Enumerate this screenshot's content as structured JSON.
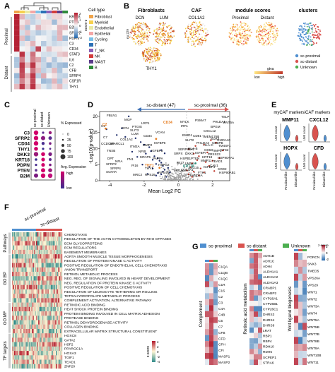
{
  "panels": {
    "A": {
      "letter": "A",
      "row_groups": [
        "Proximal",
        "Distant"
      ],
      "genes": [
        "KRT18",
        "PTEN",
        "B2M",
        "SFRP2",
        "PDPN",
        "C3",
        "CD34",
        "STAT3",
        "IL6",
        "C2",
        "CFB",
        "SFRP4",
        "CSF1R",
        "THY1"
      ],
      "colorbar_label": "z-score",
      "colorbar_ticks": [
        "2",
        "1",
        "0",
        "-1",
        "-2"
      ],
      "legend_title": "Cell type",
      "legend_items": [
        {
          "label": "Fibroblast",
          "color": "#f0a44a"
        },
        {
          "label": "Myeloid",
          "color": "#f6d04d"
        },
        {
          "label": "Endothelial",
          "color": "#e9e9a3"
        },
        {
          "label": "Epithelial",
          "color": "#f4a6a6"
        },
        {
          "label": "Cycling",
          "color": "#7bc0e8"
        },
        {
          "label": "T",
          "color": "#2a6fb5"
        },
        {
          "label": "T_NK",
          "color": "#8a5fb8"
        },
        {
          "label": "NK",
          "color": "#d23a3a"
        },
        {
          "label": "MAST",
          "color": "#5a3a8a"
        },
        {
          "label": "B",
          "color": "#2f8a3a"
        }
      ]
    },
    "B": {
      "letter": "B",
      "fibroblasts_title": "Fibroblasts",
      "caf_title": "CAF",
      "module_title": "module scores",
      "clusters_title": "clusters",
      "genes_top": [
        "DCN",
        "LUM",
        "COL1A2"
      ],
      "module_labels": [
        "Proximal",
        "Distant"
      ],
      "gene_bottom": "THY1",
      "axis_label": "nu 229",
      "gtex_label": "gtva",
      "gtex_low": "low",
      "gtex_high": "high",
      "cluster_legend": [
        {
          "label": "sc-proximal",
          "color": "#4f8fd0"
        },
        {
          "label": "sc-distant",
          "color": "#d9534f"
        },
        {
          "label": "Unknown",
          "color": "#4caf50"
        }
      ]
    },
    "C": {
      "letter": "C",
      "columns": [
        "sc-proximal",
        "sc-distant",
        "Unknown"
      ],
      "genes": [
        "C3",
        "SFRP2",
        "CD34",
        "THY1",
        "DKK3",
        "KRT18",
        "PDPN",
        "PTEN",
        "B2M"
      ],
      "pct_title": "% Expressed",
      "pct_values": [
        "0",
        "25",
        "50",
        "75",
        "100"
      ],
      "avg_title": "Avg. Expression",
      "avg_high": "high",
      "avg_low": "low"
    },
    "D": {
      "letter": "D",
      "arrow_left": "sc-distant (47)",
      "arrow_right": "sc-proximal (36)",
      "xlabel": "Mean Log2 FC",
      "ylabel": "-Log10(p-value)",
      "x_ticks": [
        "-4",
        "-2",
        "0",
        "2"
      ],
      "y_ticks": [
        "0",
        "5",
        "10",
        "15",
        "20"
      ],
      "labels_distant": [
        "FBLN1",
        "C2",
        "C7",
        "CCDC80",
        "SPARCL1",
        "SFRP2",
        "SCNTA",
        "MRC2",
        "RPS29",
        "RPS4X",
        "TNXB",
        "DPT",
        "SFRP4",
        "CD34",
        "PTGIS",
        "MGP",
        "LRP1",
        "SLIT3",
        "COL1A2",
        "IGFBP6",
        "NFIB",
        "MFAP5",
        "PI16",
        "THY1",
        "LUM",
        "DCN",
        "MMP2",
        "IGFBP3",
        "FN1",
        "NFIA",
        "VCAN",
        "ITM2A",
        "PAPPA",
        "HSPG2"
      ],
      "labels_proximal": [
        "MYLK",
        "PSMA7",
        "PHLDA1",
        "TSLP",
        "WNT5A",
        "BPGM",
        "IRF1",
        "CXCL12",
        "EMID1",
        "CD81",
        "SERPINH1",
        "HLA-B",
        "TMEM176B",
        "SLIT2",
        "SOX4",
        "CEBPB",
        "PHLDA2",
        "TM4SF1",
        "DKK3",
        "HLA-C",
        "HSP90AA1",
        "IGFBP7",
        "CD63",
        "TIMP1",
        "S100A10",
        "SRPX",
        "KRT18",
        "PRSS23",
        "TEAD1",
        "HSPB1",
        "IFI27",
        "CAV1",
        "SOD2",
        "ETS2",
        "HSP90AB1",
        "COL4A1",
        "ISG15",
        "MMP11",
        "IGFBP4",
        "ZFAND5A",
        "LMNA",
        "PTEN",
        "EIF1",
        "FTH1"
      ],
      "labels_other": [
        "CD34",
        "C2",
        "THY1",
        "KRT18"
      ]
    },
    "E": {
      "letter": "E",
      "mycaf": "myCAF markers",
      "icaf": "iCAF markers",
      "genes": [
        "MMP11",
        "CXCL12",
        "HOPX",
        "CFD"
      ],
      "ylabel": "UMI count",
      "xlabels": [
        "Proximal-like",
        "Distant-like"
      ]
    },
    "F": {
      "letter": "F",
      "headers": [
        "sc-proximal",
        "sc-distant"
      ],
      "row_groups": [
        "Pathways",
        "GO:BP",
        "GO:MF",
        "TF targets"
      ],
      "terms": [
        "CHEMOTAXIS",
        "REGULATION OF THE ACTIN CYTOSKELETON BY RHO GTPASES",
        "ECM GLYCOPROTEINS",
        "ECM REGULATORS",
        "BASEMENT MEMBRANES",
        "AORTA SMOOTH MUSCLE TISSUE MORPHOGENESIS",
        "REGULATION OF PROTEIN KINASE C ACTIVITY",
        "POSITIVE REGULATION OF ENDOTHELIAL CELL CHEMOTAXIS",
        "ANION TRANSPORT",
        "RETINOL METABOLIC PROCESS",
        "NEG. REG. OF SIGNALING INVOLVED IN HEART DEVELOPMENT",
        "NEG. REGULATION OF PROTEIN KINASE C ACTIVITY",
        "POSITIVE REGULATION OF CELL CHEMOTAXIS",
        "REGULATION OF LEUKOCYTE TETHERING OR ROLLING",
        "TETRAHYDROFOLATE METABOLIC PROCESS",
        "COMPLEMENT ACTIVATION, ALTERNATIVE PATHWAY",
        "RETINOIC ACID BINDING",
        "HEAT SHOCK PROTEIN BINDING",
        "PROTEIN BINDING INVOLVED IN CELL MATRIX ADHESION",
        "PROTEASE BINDING",
        "RETINOL DEHYDROGENASE ACTIVITY",
        "COLLAGEN BINDING",
        "EXTRACELLULAR MATRIX STRUCTURAL CONSTITUENT",
        "HOXC8",
        "GATA2",
        "HSF2",
        "PPARGC1A",
        "HOXA3",
        "TGIF1",
        "TEAD1",
        "ZNF20"
      ],
      "colorbar_label": "z-score",
      "colorbar_ticks": [
        "4",
        "2",
        "0",
        "-2",
        "-4"
      ]
    },
    "G": {
      "letter": "G",
      "legend": [
        {
          "label": "sc-proximal",
          "color": "#4f8fd0"
        },
        {
          "label": "sc-distant",
          "color": "#d9534f"
        },
        {
          "label": "Unknown",
          "color": "#4caf50"
        }
      ],
      "colorbar_label": "z-score",
      "colorbar_ticks": [
        "2",
        "0",
        "-2"
      ],
      "blocks": [
        {
          "label": "Complement",
          "genes": [
            "C1QA",
            "C1QB",
            "C1QC",
            "C1R",
            "C1S",
            "C2",
            "C3",
            "C4A",
            "C4B",
            "C5",
            "C7",
            "CFB",
            "CFD",
            "CFH",
            "CFI",
            "MASP1",
            "MASP2"
          ]
        },
        {
          "label": "Retinoic acid metabolism",
          "genes": [
            "ADH1B",
            "ADH1C",
            "ADH4",
            "ALDH1A1",
            "ALDH1A2",
            "ALDH1A3",
            "CRABP1",
            "CRABP2",
            "CYP26A1",
            "CYP26B1",
            "CYP26C1",
            "DHRS3",
            "DHRS4",
            "DHRS9",
            "LRAT",
            "RBP1",
            "RBP4",
            "RDH10",
            "RDH5",
            "SCPEP1",
            "STRA6"
          ]
        },
        {
          "label": "Wnt ligand biogenesis",
          "genes": [
            "PORCN",
            "SNX3",
            "TMED5",
            "VPS26A",
            "VPS29",
            "WNT1",
            "WNT2",
            "WNT3A",
            "WNT4",
            "WNT5A",
            "WNT5B",
            "WNT7B",
            "WNT8B",
            "WNT9A",
            "WNT10B",
            "WNT11"
          ]
        }
      ]
    }
  }
}
